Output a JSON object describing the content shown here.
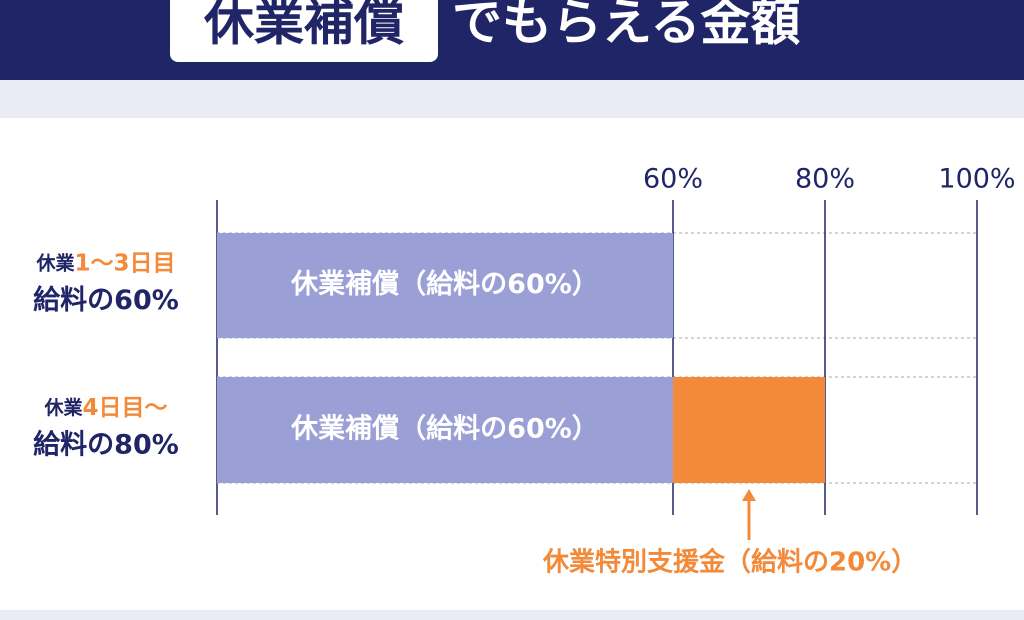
{
  "chart_data": {
    "type": "stacked-bar-horizontal",
    "title": {
      "highlight": "休業補償",
      "rest": "でもらえる金額"
    },
    "categories": [
      {
        "line1": [
          "休業",
          "1〜3日目"
        ],
        "line2": "給料の60%"
      },
      {
        "line1": [
          "休業",
          "4日目〜"
        ],
        "line2": "給料の80%"
      }
    ],
    "series": [
      {
        "color": "#9a9fd6",
        "values": [
          60,
          60
        ],
        "value_labels": [
          "休業補償（給料の60%）",
          "休業補償（給料の60%）"
        ]
      },
      {
        "color": "#f28a3a",
        "values": [
          null,
          20
        ],
        "value_labels": [
          null,
          "休業特別支援金（給料の20%）"
        ]
      }
    ],
    "xlim": [
      0,
      100
    ],
    "xticks": [
      {
        "value": 60,
        "label": "60%"
      },
      {
        "value": 80,
        "label": "80%"
      },
      {
        "value": 100,
        "label": "100%"
      }
    ],
    "grid": true
  }
}
